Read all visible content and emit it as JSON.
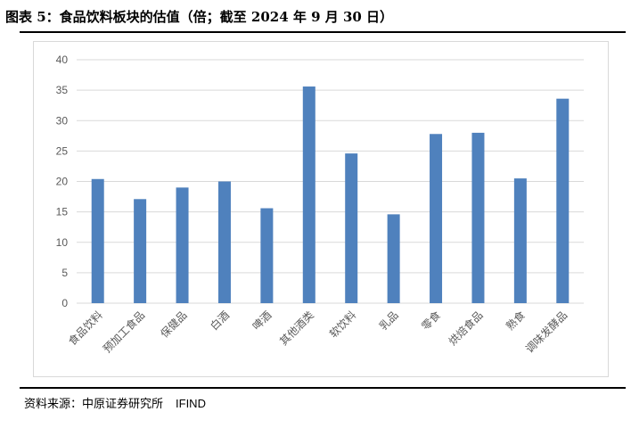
{
  "figure_title": "图表 5：食品饮料板块的估值（倍；截至 2024 年 9 月 30 日）",
  "source": {
    "label": "资料来源：中原证券研究所",
    "tool": "IFIND"
  },
  "colors": {
    "bar": "#4f81bd",
    "grid": "#d9d9d9",
    "axis_text": "#595959"
  },
  "chart_data": {
    "type": "bar",
    "title": "",
    "xlabel": "",
    "ylabel": "",
    "categories": [
      "食品饮料",
      "预加工食品",
      "保健品",
      "白酒",
      "啤酒",
      "其他酒类",
      "软饮料",
      "乳品",
      "零食",
      "烘焙食品",
      "熟食",
      "调味发酵品"
    ],
    "values": [
      20.4,
      17.1,
      19.0,
      20.0,
      15.6,
      35.6,
      24.6,
      14.6,
      27.8,
      28.0,
      20.5,
      33.6
    ],
    "ylim": [
      0,
      40
    ],
    "yticks": [
      0,
      5,
      10,
      15,
      20,
      25,
      30,
      35,
      40
    ],
    "grid": true,
    "legend": "none"
  }
}
